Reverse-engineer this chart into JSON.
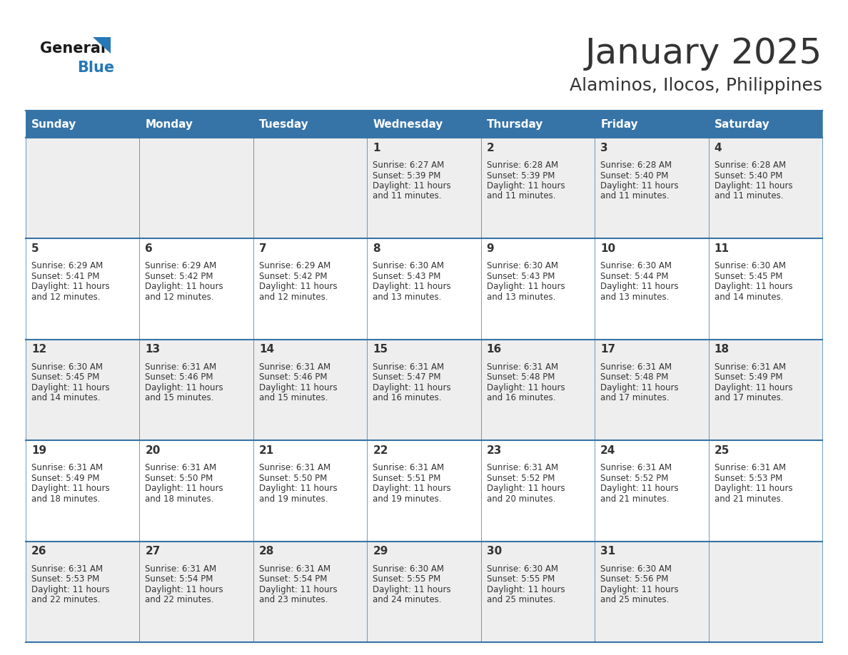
{
  "title": "January 2025",
  "subtitle": "Alaminos, Ilocos, Philippines",
  "header_bg_color": "#3674a8",
  "header_text_color": "#ffffff",
  "row_bg_even": "#eeeeee",
  "row_bg_odd": "#ffffff",
  "divider_color": "#3674a8",
  "text_color": "#333333",
  "day_number_color": "#333333",
  "days_of_week": [
    "Sunday",
    "Monday",
    "Tuesday",
    "Wednesday",
    "Thursday",
    "Friday",
    "Saturday"
  ],
  "weeks": [
    [
      {
        "day": null,
        "sunrise": null,
        "sunset": null,
        "daylight": null
      },
      {
        "day": null,
        "sunrise": null,
        "sunset": null,
        "daylight": null
      },
      {
        "day": null,
        "sunrise": null,
        "sunset": null,
        "daylight": null
      },
      {
        "day": 1,
        "sunrise": "6:27 AM",
        "sunset": "5:39 PM",
        "daylight": "11 hours and 11 minutes."
      },
      {
        "day": 2,
        "sunrise": "6:28 AM",
        "sunset": "5:39 PM",
        "daylight": "11 hours and 11 minutes."
      },
      {
        "day": 3,
        "sunrise": "6:28 AM",
        "sunset": "5:40 PM",
        "daylight": "11 hours and 11 minutes."
      },
      {
        "day": 4,
        "sunrise": "6:28 AM",
        "sunset": "5:40 PM",
        "daylight": "11 hours and 11 minutes."
      }
    ],
    [
      {
        "day": 5,
        "sunrise": "6:29 AM",
        "sunset": "5:41 PM",
        "daylight": "11 hours and 12 minutes."
      },
      {
        "day": 6,
        "sunrise": "6:29 AM",
        "sunset": "5:42 PM",
        "daylight": "11 hours and 12 minutes."
      },
      {
        "day": 7,
        "sunrise": "6:29 AM",
        "sunset": "5:42 PM",
        "daylight": "11 hours and 12 minutes."
      },
      {
        "day": 8,
        "sunrise": "6:30 AM",
        "sunset": "5:43 PM",
        "daylight": "11 hours and 13 minutes."
      },
      {
        "day": 9,
        "sunrise": "6:30 AM",
        "sunset": "5:43 PM",
        "daylight": "11 hours and 13 minutes."
      },
      {
        "day": 10,
        "sunrise": "6:30 AM",
        "sunset": "5:44 PM",
        "daylight": "11 hours and 13 minutes."
      },
      {
        "day": 11,
        "sunrise": "6:30 AM",
        "sunset": "5:45 PM",
        "daylight": "11 hours and 14 minutes."
      }
    ],
    [
      {
        "day": 12,
        "sunrise": "6:30 AM",
        "sunset": "5:45 PM",
        "daylight": "11 hours and 14 minutes."
      },
      {
        "day": 13,
        "sunrise": "6:31 AM",
        "sunset": "5:46 PM",
        "daylight": "11 hours and 15 minutes."
      },
      {
        "day": 14,
        "sunrise": "6:31 AM",
        "sunset": "5:46 PM",
        "daylight": "11 hours and 15 minutes."
      },
      {
        "day": 15,
        "sunrise": "6:31 AM",
        "sunset": "5:47 PM",
        "daylight": "11 hours and 16 minutes."
      },
      {
        "day": 16,
        "sunrise": "6:31 AM",
        "sunset": "5:48 PM",
        "daylight": "11 hours and 16 minutes."
      },
      {
        "day": 17,
        "sunrise": "6:31 AM",
        "sunset": "5:48 PM",
        "daylight": "11 hours and 17 minutes."
      },
      {
        "day": 18,
        "sunrise": "6:31 AM",
        "sunset": "5:49 PM",
        "daylight": "11 hours and 17 minutes."
      }
    ],
    [
      {
        "day": 19,
        "sunrise": "6:31 AM",
        "sunset": "5:49 PM",
        "daylight": "11 hours and 18 minutes."
      },
      {
        "day": 20,
        "sunrise": "6:31 AM",
        "sunset": "5:50 PM",
        "daylight": "11 hours and 18 minutes."
      },
      {
        "day": 21,
        "sunrise": "6:31 AM",
        "sunset": "5:50 PM",
        "daylight": "11 hours and 19 minutes."
      },
      {
        "day": 22,
        "sunrise": "6:31 AM",
        "sunset": "5:51 PM",
        "daylight": "11 hours and 19 minutes."
      },
      {
        "day": 23,
        "sunrise": "6:31 AM",
        "sunset": "5:52 PM",
        "daylight": "11 hours and 20 minutes."
      },
      {
        "day": 24,
        "sunrise": "6:31 AM",
        "sunset": "5:52 PM",
        "daylight": "11 hours and 21 minutes."
      },
      {
        "day": 25,
        "sunrise": "6:31 AM",
        "sunset": "5:53 PM",
        "daylight": "11 hours and 21 minutes."
      }
    ],
    [
      {
        "day": 26,
        "sunrise": "6:31 AM",
        "sunset": "5:53 PM",
        "daylight": "11 hours and 22 minutes."
      },
      {
        "day": 27,
        "sunrise": "6:31 AM",
        "sunset": "5:54 PM",
        "daylight": "11 hours and 22 minutes."
      },
      {
        "day": 28,
        "sunrise": "6:31 AM",
        "sunset": "5:54 PM",
        "daylight": "11 hours and 23 minutes."
      },
      {
        "day": 29,
        "sunrise": "6:30 AM",
        "sunset": "5:55 PM",
        "daylight": "11 hours and 24 minutes."
      },
      {
        "day": 30,
        "sunrise": "6:30 AM",
        "sunset": "5:55 PM",
        "daylight": "11 hours and 25 minutes."
      },
      {
        "day": 31,
        "sunrise": "6:30 AM",
        "sunset": "5:56 PM",
        "daylight": "11 hours and 25 minutes."
      },
      {
        "day": null,
        "sunrise": null,
        "sunset": null,
        "daylight": null
      }
    ]
  ],
  "logo_text_general": "General",
  "logo_text_blue": "Blue",
  "logo_color_general": "#1a1a1a",
  "logo_color_blue": "#2678b8",
  "logo_triangle_color": "#2678b8",
  "title_fontsize": 36,
  "subtitle_fontsize": 18,
  "header_fontsize": 11,
  "day_number_fontsize": 11,
  "cell_text_fontsize": 8.5
}
